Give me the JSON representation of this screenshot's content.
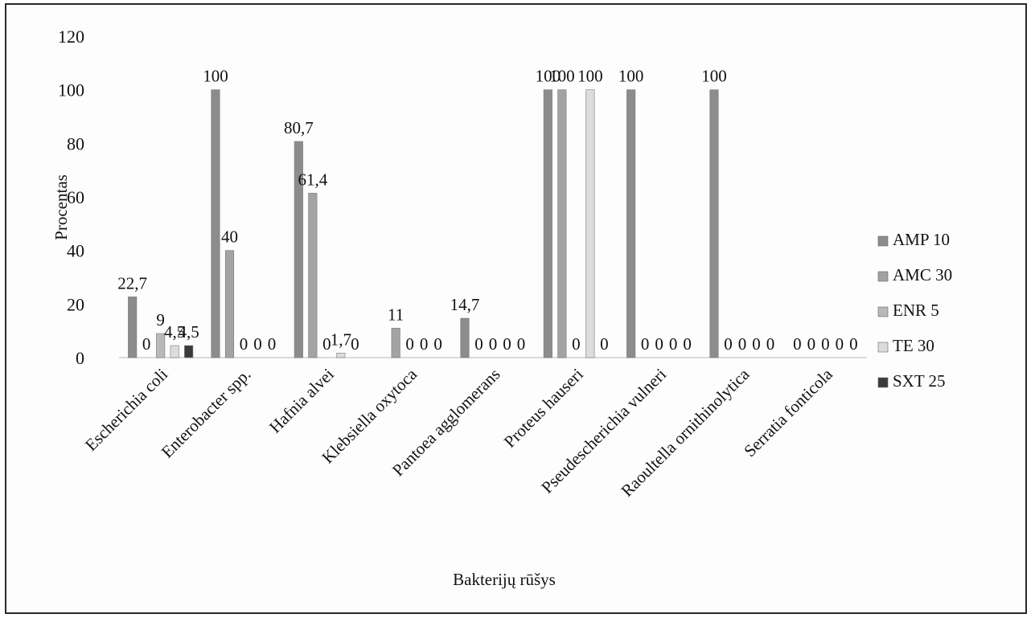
{
  "chart_data": {
    "type": "bar",
    "title": "",
    "xlabel": "Bakterijų rūšys",
    "ylabel": "Procentas",
    "ylim": [
      0,
      120
    ],
    "yticks": [
      0,
      20,
      40,
      60,
      80,
      100,
      120
    ],
    "grid": false,
    "legend_position": "right",
    "categories": [
      "Escherichia coli",
      "Enterobacter spp.",
      "Hafnia alvei",
      "Klebsiella oxytoca",
      "Pantoea agglomerans",
      "Proteus hauseri",
      "Pseudescherichia vulneri",
      "Raoultella ornithinolytica",
      "Serratia fonticola"
    ],
    "series": [
      {
        "name": "AMP 10",
        "color": "#8c8c8c",
        "values": [
          22.7,
          100,
          80.7,
          0,
          14.7,
          100,
          100,
          100,
          0
        ]
      },
      {
        "name": "AMC 30",
        "color": "#a3a3a3",
        "values": [
          0,
          40,
          61.4,
          11,
          0,
          100,
          0,
          0,
          0
        ]
      },
      {
        "name": "ENR 5",
        "color": "#b9b9b9",
        "values": [
          9,
          0,
          0,
          0,
          0,
          0,
          0,
          0,
          0
        ]
      },
      {
        "name": "TE 30",
        "color": "#dcdcdc",
        "values": [
          4.5,
          0,
          1.7,
          0,
          0,
          100,
          0,
          0,
          0
        ]
      },
      {
        "name": "SXT 25",
        "color": "#3a3a3a",
        "values": [
          4.5,
          0,
          0,
          0,
          0,
          0,
          0,
          0,
          0
        ]
      }
    ],
    "data_labels": [
      [
        "22,7",
        "100",
        "80,7",
        "",
        "14,7",
        "100",
        "100",
        "100",
        "0"
      ],
      [
        "0",
        "40",
        "61,4",
        "11",
        "0",
        "100",
        "0",
        "0",
        "0"
      ],
      [
        "9",
        "0",
        "0",
        "0",
        "0",
        "0",
        "0",
        "0",
        "0"
      ],
      [
        "4,5",
        "0",
        "1,7",
        "0",
        "0",
        "100",
        "0",
        "0",
        "0"
      ],
      [
        "4,5",
        "0",
        "0",
        "0",
        "0",
        "0",
        "0",
        "0",
        "0"
      ]
    ]
  }
}
